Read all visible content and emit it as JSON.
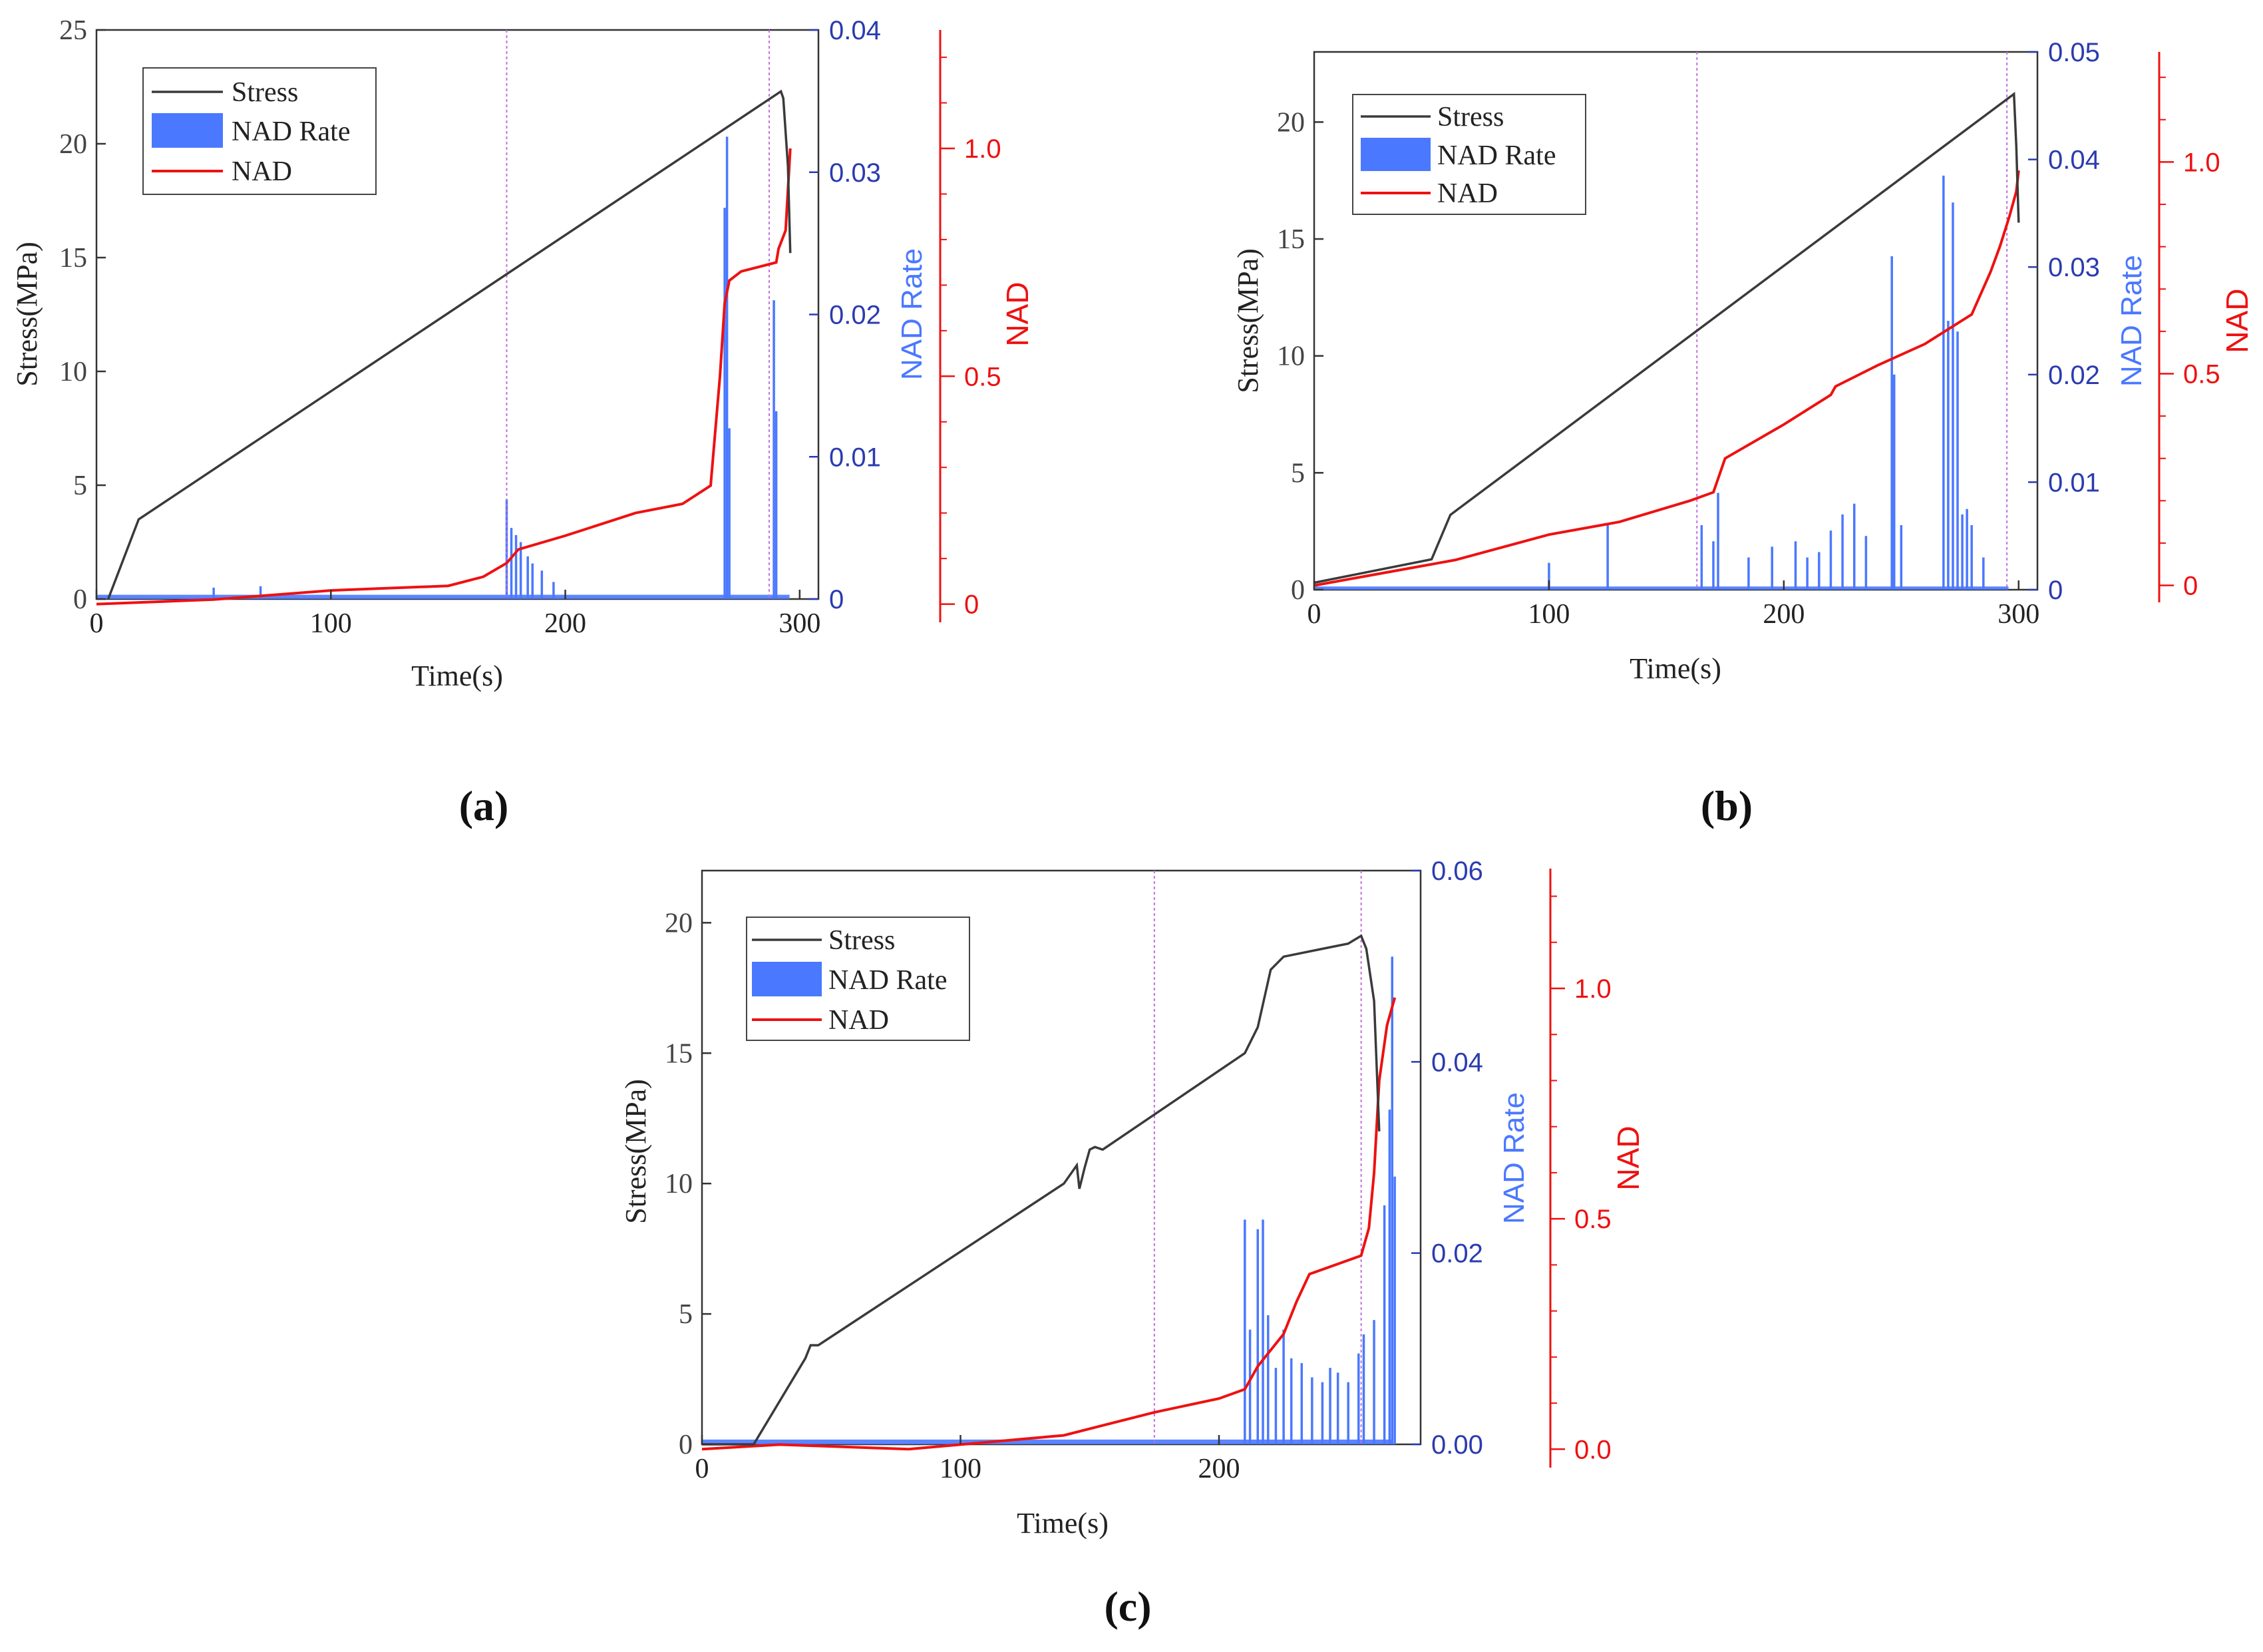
{
  "colors": {
    "stress": "#3a3a3a",
    "nad_rate": "#4a78ff",
    "nad": "#ee1111",
    "rate_axis": "#2b3bb0",
    "guide": "#c070e0",
    "axis": "#333333"
  },
  "chart_data": [
    {
      "type": "line",
      "label": "(a)",
      "xlabel": "Time(s)",
      "ylabel": "Stress(MPa)",
      "y2label": "NAD Rate",
      "y3label": "NAD",
      "xlim": [
        0,
        308
      ],
      "ylim": [
        0,
        25
      ],
      "y2lim": [
        0,
        0.04
      ],
      "y3lim": [
        -0.04,
        1.26
      ],
      "xticks": [
        0,
        100,
        200,
        300
      ],
      "yticks": [
        0,
        5,
        10,
        15,
        20,
        25
      ],
      "y2ticks": [
        0,
        0.01,
        0.02,
        0.03,
        0.04
      ],
      "y2ticklabels": [
        "0",
        "0.01",
        "0.02",
        "0.03",
        "0.04"
      ],
      "y3ticks": [
        0,
        0.5,
        1.0
      ],
      "y3ticklabels": [
        "0",
        "0.5",
        "1.0"
      ],
      "legend": [
        "Stress",
        "NAD Rate",
        "NAD"
      ],
      "guides": [
        175,
        287
      ],
      "stress": {
        "x": [
          5,
          18,
          292,
          293,
          295,
          296
        ],
        "y": [
          0,
          3.5,
          22.3,
          22,
          19,
          15.2
        ]
      },
      "nad": {
        "x": [
          0,
          50,
          100,
          150,
          165,
          175,
          180,
          200,
          230,
          250,
          262,
          266,
          268,
          270,
          275,
          290,
          291,
          294,
          296
        ],
        "y": [
          0.0,
          0.01,
          0.03,
          0.04,
          0.06,
          0.09,
          0.12,
          0.15,
          0.2,
          0.22,
          0.26,
          0.5,
          0.66,
          0.71,
          0.73,
          0.75,
          0.78,
          0.82,
          1.0
        ]
      },
      "nad_rate": {
        "baseline": 0.0003,
        "spikes": [
          [
            50,
            0.0008
          ],
          [
            70,
            0.0009
          ],
          [
            175,
            0.007
          ],
          [
            177,
            0.005
          ],
          [
            179,
            0.0045
          ],
          [
            181,
            0.004
          ],
          [
            184,
            0.003
          ],
          [
            186,
            0.0025
          ],
          [
            190,
            0.002
          ],
          [
            195,
            0.0012
          ],
          [
            268,
            0.0275
          ],
          [
            269,
            0.0325
          ],
          [
            270,
            0.012
          ],
          [
            289,
            0.021
          ],
          [
            290,
            0.0132
          ]
        ]
      }
    },
    {
      "type": "line",
      "label": "(b)",
      "xlabel": "Time(s)",
      "ylabel": "Stress(MPa)",
      "y2label": "NAD Rate",
      "y3label": "NAD",
      "xlim": [
        0,
        308
      ],
      "ylim": [
        0,
        23
      ],
      "y2lim": [
        0,
        0.05
      ],
      "y3lim": [
        -0.04,
        1.26
      ],
      "xticks": [
        0,
        100,
        200,
        300
      ],
      "yticks": [
        0,
        5,
        10,
        15,
        20
      ],
      "y2ticks": [
        0,
        0.01,
        0.02,
        0.03,
        0.04,
        0.05
      ],
      "y2ticklabels": [
        "0",
        "0.01",
        "0.02",
        "0.03",
        "0.04",
        "0.05"
      ],
      "y3ticks": [
        0,
        0.5,
        1.0
      ],
      "y3ticklabels": [
        "0",
        "0.5",
        "1.0"
      ],
      "legend": [
        "Stress",
        "NAD Rate",
        "NAD"
      ],
      "guides": [
        163,
        295
      ],
      "stress": {
        "x": [
          0,
          50,
          58,
          62,
          298,
          299,
          300
        ],
        "y": [
          0.3,
          1.3,
          3.2,
          3.5,
          21.2,
          19,
          15.7
        ]
      },
      "nad": {
        "x": [
          0,
          40,
          60,
          100,
          130,
          160,
          170,
          175,
          200,
          220,
          222,
          240,
          260,
          280,
          288,
          292,
          296,
          299,
          300
        ],
        "y": [
          0.0,
          0.04,
          0.06,
          0.12,
          0.15,
          0.2,
          0.22,
          0.3,
          0.38,
          0.45,
          0.47,
          0.52,
          0.57,
          0.64,
          0.74,
          0.8,
          0.87,
          0.93,
          0.98
        ]
      },
      "nad_rate": {
        "baseline": 0.0003,
        "spikes": [
          [
            100,
            0.0025
          ],
          [
            125,
            0.006
          ],
          [
            165,
            0.006
          ],
          [
            170,
            0.0045
          ],
          [
            172,
            0.009
          ],
          [
            185,
            0.003
          ],
          [
            195,
            0.004
          ],
          [
            205,
            0.0045
          ],
          [
            210,
            0.003
          ],
          [
            215,
            0.0035
          ],
          [
            220,
            0.0055
          ],
          [
            225,
            0.007
          ],
          [
            230,
            0.008
          ],
          [
            235,
            0.005
          ],
          [
            246,
            0.031
          ],
          [
            247,
            0.02
          ],
          [
            250,
            0.006
          ],
          [
            268,
            0.0385
          ],
          [
            270,
            0.025
          ],
          [
            272,
            0.036
          ],
          [
            274,
            0.024
          ],
          [
            276,
            0.007
          ],
          [
            278,
            0.0075
          ],
          [
            280,
            0.006
          ],
          [
            285,
            0.003
          ]
        ]
      }
    },
    {
      "type": "line",
      "label": "(c)",
      "xlabel": "Time(s)",
      "ylabel": "Stress(MPa)",
      "y2label": "NAD Rate",
      "y3label": "NAD",
      "xlim": [
        0,
        278
      ],
      "ylim": [
        0,
        22
      ],
      "y2lim": [
        0,
        0.06
      ],
      "y3lim": [
        -0.04,
        1.26
      ],
      "xticks": [
        0,
        100,
        200
      ],
      "yticks": [
        0,
        5,
        10,
        15,
        20
      ],
      "y2ticks": [
        0,
        0.02,
        0.04,
        0.06
      ],
      "y2ticklabels": [
        "0.00",
        "0.02",
        "0.04",
        "0.06"
      ],
      "y3ticks": [
        0,
        0.5,
        1.0
      ],
      "y3ticklabels": [
        "0.0",
        "0.5",
        "1.0"
      ],
      "legend": [
        "Stress",
        "NAD Rate",
        "NAD"
      ],
      "guides": [
        175,
        255
      ],
      "stress": {
        "x": [
          0,
          20,
          40,
          42,
          45,
          140,
          145,
          146,
          148,
          150,
          152,
          155,
          210,
          215,
          220,
          225,
          240,
          250,
          255,
          257,
          260,
          262
        ],
        "y": [
          0,
          0,
          3.3,
          3.8,
          3.8,
          10.0,
          10.7,
          9.8,
          10.6,
          11.3,
          11.4,
          11.3,
          15.0,
          16.0,
          18.2,
          18.7,
          19.0,
          19.2,
          19.5,
          19.0,
          17.0,
          12.0
        ]
      },
      "nad": {
        "x": [
          0,
          30,
          80,
          140,
          175,
          200,
          210,
          215,
          225,
          230,
          235,
          245,
          255,
          258,
          260,
          262,
          265,
          268
        ],
        "y": [
          0.0,
          0.01,
          0.0,
          0.03,
          0.08,
          0.11,
          0.13,
          0.18,
          0.25,
          0.32,
          0.38,
          0.4,
          0.42,
          0.48,
          0.6,
          0.8,
          0.92,
          0.98
        ]
      },
      "nad_rate": {
        "baseline": 0.0005,
        "spikes": [
          [
            210,
            0.0235
          ],
          [
            212,
            0.012
          ],
          [
            215,
            0.0225
          ],
          [
            217,
            0.0235
          ],
          [
            219,
            0.0135
          ],
          [
            222,
            0.008
          ],
          [
            225,
            0.012
          ],
          [
            228,
            0.009
          ],
          [
            232,
            0.0085
          ],
          [
            236,
            0.007
          ],
          [
            240,
            0.0065
          ],
          [
            243,
            0.008
          ],
          [
            246,
            0.0075
          ],
          [
            250,
            0.0065
          ],
          [
            254,
            0.0095
          ],
          [
            256,
            0.0115
          ],
          [
            260,
            0.013
          ],
          [
            264,
            0.025
          ],
          [
            266,
            0.035
          ],
          [
            267,
            0.051
          ],
          [
            268,
            0.028
          ]
        ]
      }
    }
  ]
}
